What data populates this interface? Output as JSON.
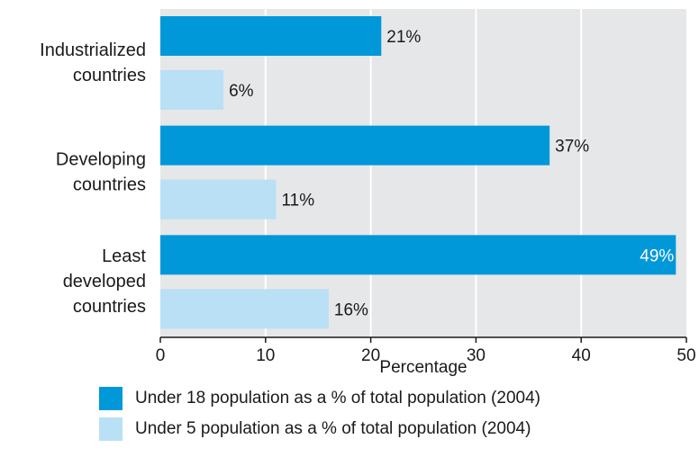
{
  "chart_data": {
    "type": "bar",
    "orientation": "horizontal",
    "categories": [
      [
        "Industrialized",
        "countries"
      ],
      [
        "Developing",
        "countries"
      ],
      [
        "Least",
        "developed",
        "countries"
      ]
    ],
    "series": [
      {
        "name": "Under 18 population as a % of total population (2004)",
        "values": [
          21,
          37,
          49
        ],
        "labels": [
          "21%",
          "37%",
          "49%"
        ],
        "color": "#0098d9"
      },
      {
        "name": "Under 5 population as a % of total population (2004)",
        "values": [
          6,
          11,
          16
        ],
        "labels": [
          "6%",
          "11%",
          "16%"
        ],
        "color": "#b9e0f5"
      }
    ],
    "xlabel": "Percentage",
    "xlim": [
      0,
      50
    ],
    "xticks": [
      0,
      10,
      20,
      30,
      40,
      50
    ],
    "xtick_labels": [
      "0",
      "10",
      "20",
      "30",
      "40",
      "50"
    ],
    "grid": true,
    "background_color": "#e6e7e8",
    "legend_position": "bottom"
  }
}
